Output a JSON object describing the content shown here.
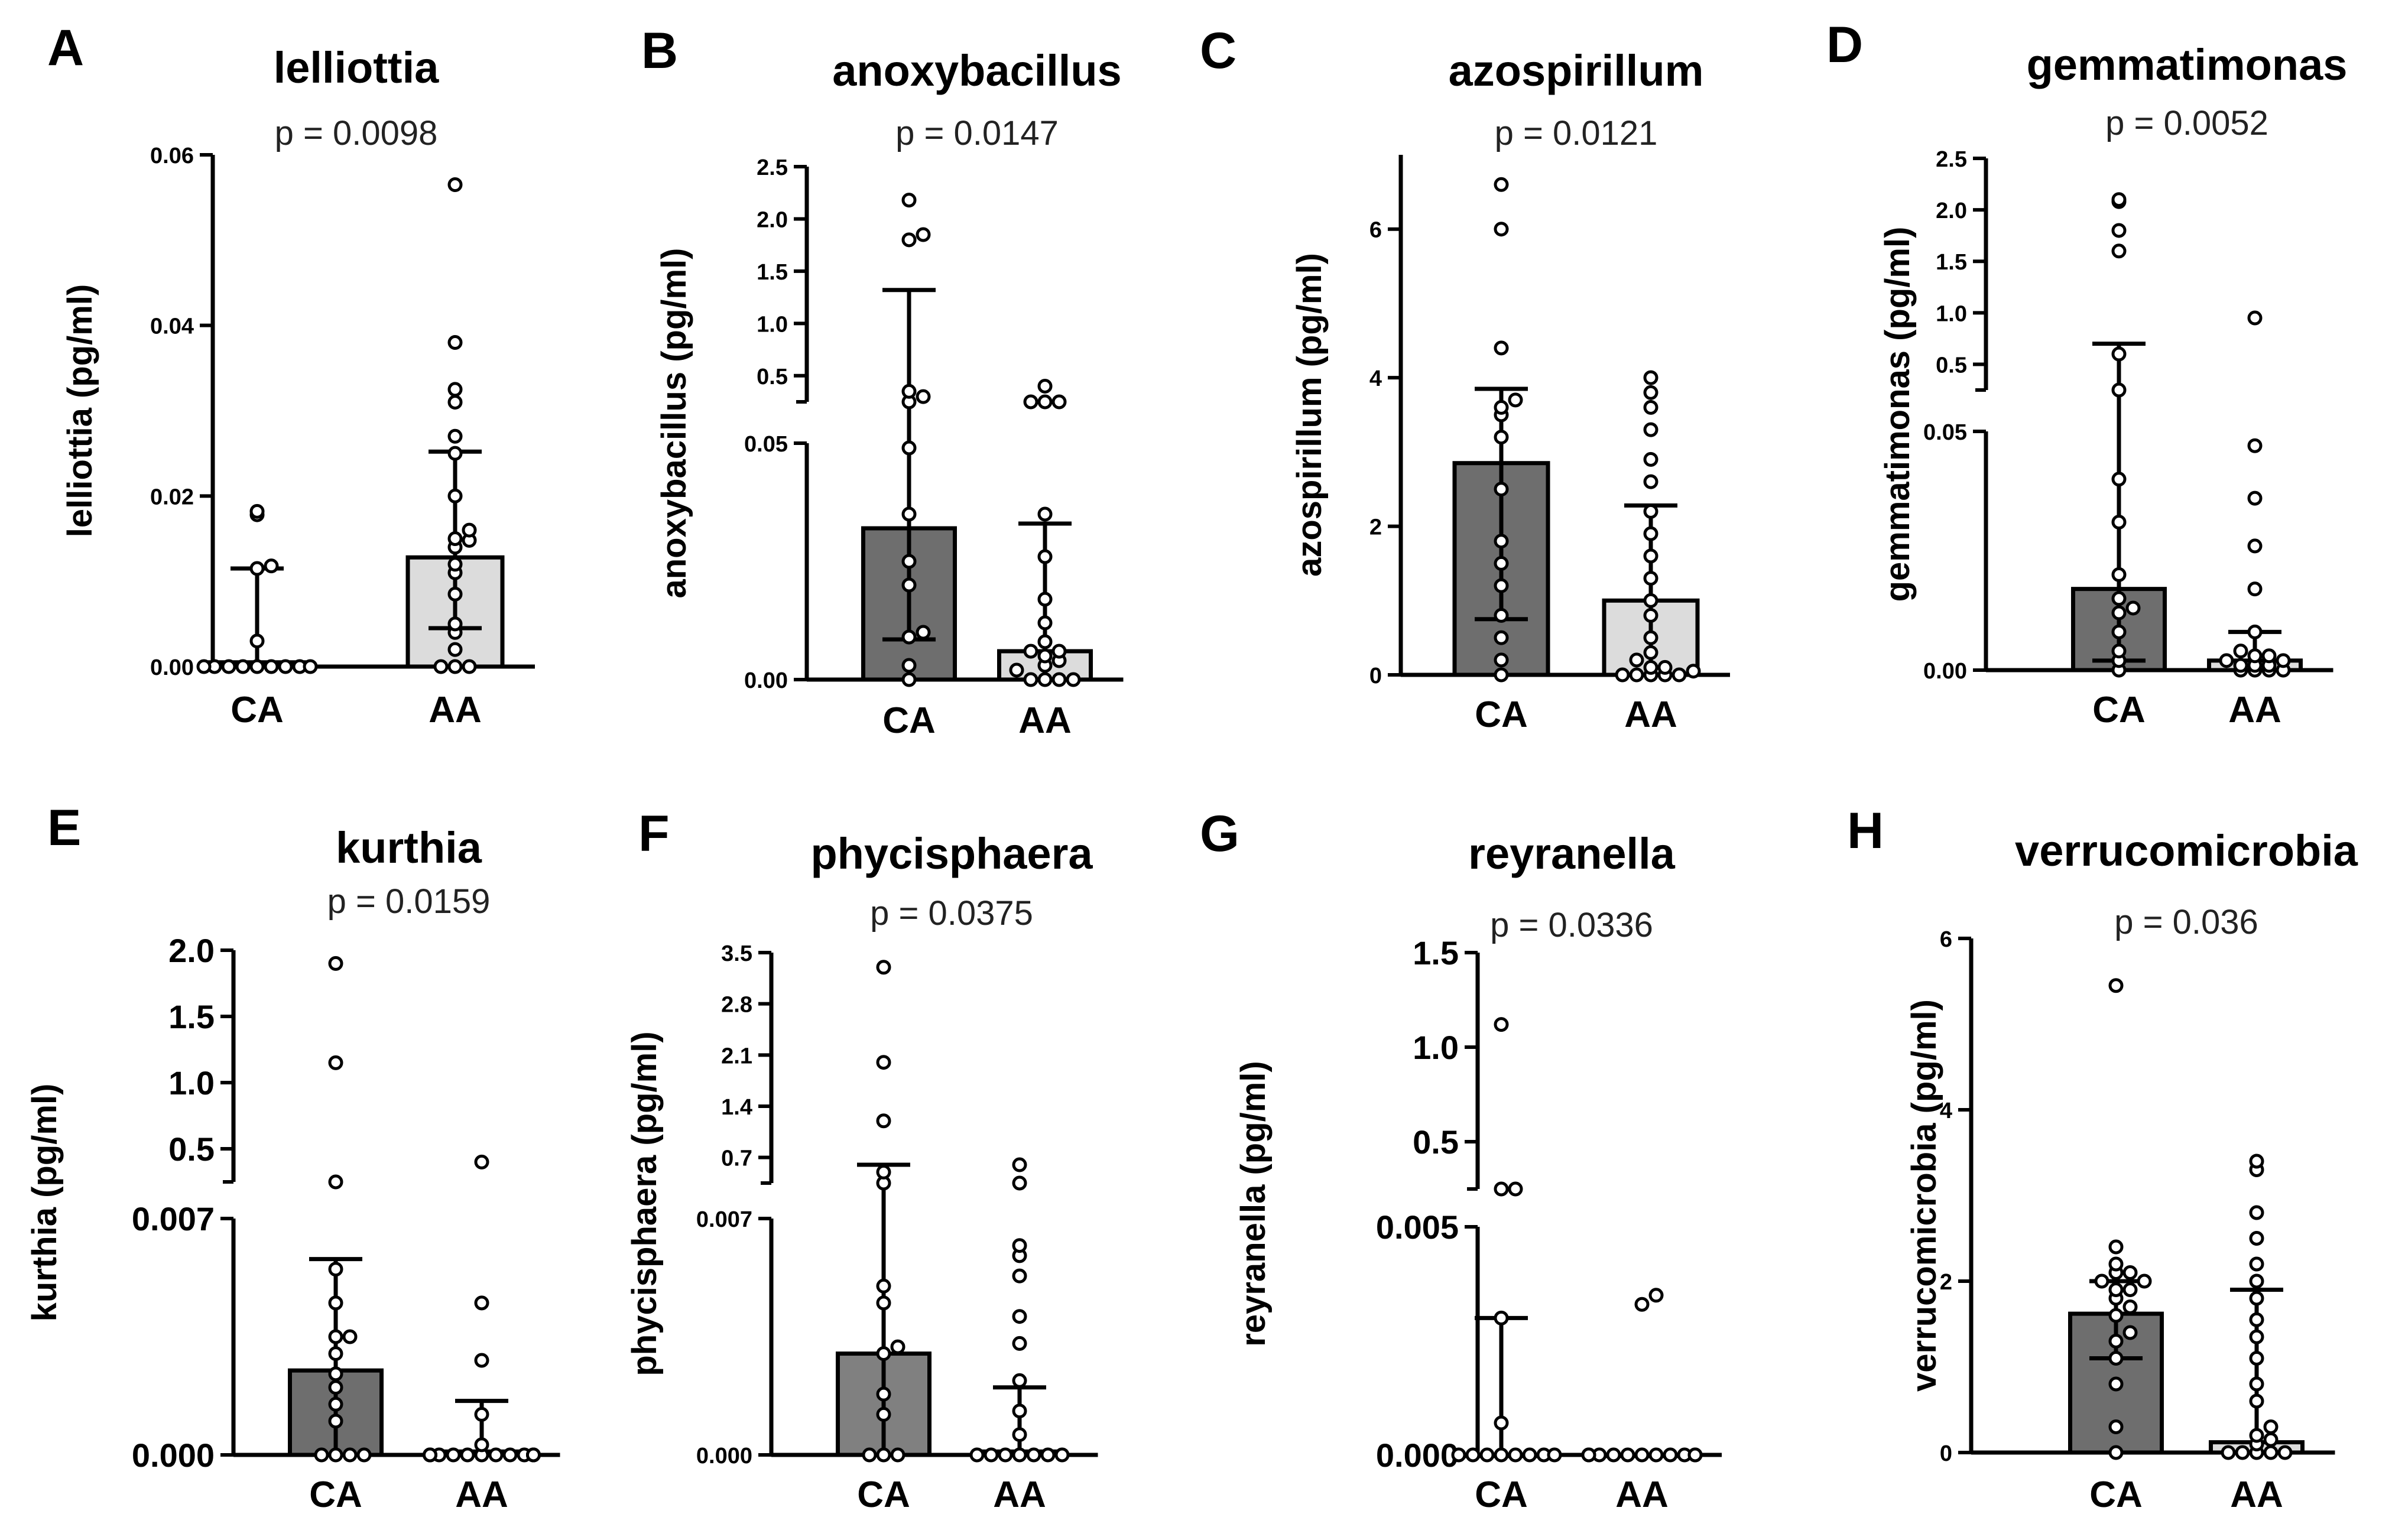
{
  "panels": [
    {
      "label": "A",
      "title": "lelliottia",
      "p": "p = 0.0098",
      "ylabel": "lelliottia (pg/ml)",
      "categories": [
        "CA",
        "AA"
      ],
      "bar_colors": [
        "#808080",
        "#dcdcdc"
      ],
      "scale": {
        "type": "linear",
        "lower": [
          0,
          0.06
        ],
        "lower_ticks": [
          "0.00",
          "0.02",
          "0.04",
          "0.06"
        ],
        "lower_tick_values": [
          0,
          0.02,
          0.04,
          0.06
        ]
      },
      "ca": {
        "median": 0.0005,
        "err_low": 0,
        "err_high": 0.0115,
        "points": [
          0,
          0,
          0,
          0,
          0,
          0,
          0,
          0,
          0,
          0.003,
          0.0115,
          0.0118,
          0.0178,
          0.0182
        ]
      },
      "aa": {
        "median": 0.0128,
        "err_low": 0.0045,
        "err_high": 0.0252,
        "points": [
          0,
          0,
          0,
          0.002,
          0.004,
          0.005,
          0.0085,
          0.011,
          0.012,
          0.014,
          0.0148,
          0.015,
          0.016,
          0.02,
          0.025,
          0.027,
          0.031,
          0.0325,
          0.038,
          0.0565
        ]
      }
    },
    {
      "label": "B",
      "title": "anoxybacillus",
      "p": "p = 0.0147",
      "ylabel": "anoxybacillus (pg/ml)",
      "categories": [
        "CA",
        "AA"
      ],
      "bar_colors": [
        "#6e6e6e",
        "#dcdcdc"
      ],
      "scale": {
        "type": "broken",
        "lower": [
          0,
          0.05
        ],
        "lower_ticks": [
          "0.00",
          "0.05"
        ],
        "lower_tick_values": [
          0,
          0.05
        ],
        "upper": [
          0,
          2.5
        ],
        "upper_ticks": [
          "0.5",
          "1.0",
          "1.5",
          "2.0",
          "2.5"
        ],
        "upper_tick_values": [
          0.5,
          1.0,
          1.5,
          2.0,
          2.5
        ]
      },
      "ca": {
        "median": 0.032,
        "err_low": 0.0085,
        "err_high": 1.32,
        "points": [
          0,
          0.003,
          0.009,
          0.01,
          0.02,
          0.025,
          0.035,
          0.049,
          0.2,
          0.35,
          0.3,
          1.85,
          1.8,
          2.18
        ]
      },
      "aa": {
        "median": 0.006,
        "err_low": 0,
        "err_high": 0.033,
        "points": [
          0,
          0,
          0,
          0,
          0.002,
          0.003,
          0.004,
          0.005,
          0.006,
          0.006,
          0.008,
          0.012,
          0.017,
          0.026,
          0.035,
          0.2,
          0.2,
          0.22,
          0.4
        ]
      }
    },
    {
      "label": "C",
      "title": "azospirillum",
      "p": "p = 0.0121",
      "ylabel": "azospirillum (pg/ml)",
      "categories": [
        "CA",
        "AA"
      ],
      "bar_colors": [
        "#6e6e6e",
        "#dcdcdc"
      ],
      "scale": {
        "type": "linear",
        "lower": [
          0,
          7
        ],
        "lower_ticks": [
          "0",
          "2",
          "4",
          "6"
        ],
        "lower_tick_values": [
          0,
          2,
          4,
          6
        ]
      },
      "ca": {
        "median": 2.85,
        "err_low": 0.75,
        "err_high": 3.85,
        "points": [
          0,
          0.2,
          0.5,
          0.8,
          1.2,
          1.5,
          1.8,
          2.5,
          3.2,
          3.5,
          3.6,
          3.7,
          4.4,
          6.0,
          6.6
        ]
      },
      "aa": {
        "median": 1.0,
        "err_low": 0,
        "err_high": 2.28,
        "points": [
          0,
          0,
          0,
          0,
          0,
          0.05,
          0.1,
          0.1,
          0.2,
          0.3,
          0.5,
          0.8,
          1.0,
          1.3,
          1.6,
          1.9,
          2.2,
          2.6,
          2.9,
          3.3,
          3.6,
          3.8,
          4.0
        ]
      }
    },
    {
      "label": "D",
      "title": "gemmatimonas",
      "p": "p = 0.0052",
      "ylabel": "gemmatimonas (pg/ml)",
      "categories": [
        "CA",
        "AA"
      ],
      "bar_colors": [
        "#6e6e6e",
        "#dcdcdc"
      ],
      "scale": {
        "type": "broken",
        "lower": [
          0,
          0.05
        ],
        "lower_ticks": [
          "0.00",
          "0.05"
        ],
        "lower_tick_values": [
          0,
          0.05
        ],
        "upper": [
          0,
          2.5
        ],
        "upper_ticks": [
          "0.5",
          "1.0",
          "1.5",
          "2.0",
          "2.5"
        ],
        "upper_tick_values": [
          0.5,
          1.0,
          1.5,
          2.0,
          2.5
        ]
      },
      "ca": {
        "median": 0.017,
        "err_low": 0.002,
        "err_high": 0.7,
        "points": [
          0,
          0.002,
          0.004,
          0.008,
          0.012,
          0.013,
          0.015,
          0.02,
          0.031,
          0.04,
          0.1,
          0.6,
          1.6,
          1.8,
          2.1,
          2.08
        ]
      },
      "aa": {
        "median": 0.002,
        "err_low": 0,
        "err_high": 0.008,
        "points": [
          0,
          0,
          0,
          0,
          0.001,
          0.001,
          0.001,
          0.002,
          0.002,
          0.003,
          0.003,
          0.004,
          0.008,
          0.017,
          0.026,
          0.036,
          0.047,
          0.95
        ]
      }
    },
    {
      "label": "E",
      "title": "kurthia",
      "p": "p = 0.0159",
      "ylabel": "kurthia (pg/ml)",
      "categories": [
        "CA",
        "AA"
      ],
      "bar_colors": [
        "#6e6e6e",
        "#dcdcdc"
      ],
      "scale": {
        "type": "broken",
        "lower": [
          0,
          0.007
        ],
        "lower_ticks": [
          "0.000",
          "0.007"
        ],
        "lower_tick_values": [
          0,
          0.007
        ],
        "upper": [
          0,
          2.0
        ],
        "upper_ticks": [
          "0.5",
          "1.0",
          "1.5",
          "2.0"
        ],
        "upper_tick_values": [
          0.5,
          1.0,
          1.5,
          2.0
        ]
      },
      "ca": {
        "median": 0.0025,
        "err_low": 0,
        "err_high": 0.0058,
        "points": [
          0,
          0,
          0,
          0,
          0.001,
          0.0015,
          0.002,
          0.0024,
          0.003,
          0.0035,
          0.0035,
          0.0045,
          0.0055,
          0.2,
          1.15,
          1.9
        ]
      },
      "aa": {
        "median": 0.0001,
        "err_low": 0,
        "err_high": 0.0016,
        "points": [
          0,
          0,
          0,
          0,
          0,
          0,
          0,
          0,
          0,
          0,
          0,
          0,
          0.0003,
          0.0012,
          0.0028,
          0.0045,
          0.0,
          0.4
        ]
      }
    },
    {
      "label": "F",
      "title": "phycisphaera",
      "p": "p = 0.0375",
      "ylabel": "phycisphaera (pg/ml)",
      "categories": [
        "CA",
        "AA"
      ],
      "bar_colors": [
        "#808080",
        "#dcdcdc"
      ],
      "scale": {
        "type": "broken",
        "lower": [
          0,
          0.007
        ],
        "lower_ticks": [
          "0.000",
          "0.007"
        ],
        "lower_tick_values": [
          0,
          0.007
        ],
        "upper": [
          0,
          3.5
        ],
        "upper_ticks": [
          "0.7",
          "1.4",
          "2.1",
          "2.8",
          "3.5"
        ],
        "upper_tick_values": [
          0.7,
          1.4,
          2.1,
          2.8,
          3.5
        ]
      },
      "ca": {
        "median": 0.003,
        "err_low": 0,
        "err_high": 0.6,
        "points": [
          0,
          0,
          0,
          0.0012,
          0.0018,
          0.003,
          0.0032,
          0.0045,
          0.005,
          0.2,
          0.5,
          1.2,
          2.0,
          3.3
        ]
      },
      "aa": {
        "median": 0.0001,
        "err_low": 0,
        "err_high": 0.002,
        "points": [
          0,
          0,
          0,
          0,
          0,
          0,
          0,
          0.0006,
          0.0013,
          0.0022,
          0.0033,
          0.0041,
          0.0053,
          0.0059,
          0.0062,
          0.1,
          0.6
        ]
      }
    },
    {
      "label": "G",
      "title": "reyranella",
      "p": "p = 0.0336",
      "ylabel": "reyranella (pg/ml)",
      "categories": [
        "CA",
        "AA"
      ],
      "bar_colors": [
        "#6e6e6e",
        "#dcdcdc"
      ],
      "scale": {
        "type": "broken",
        "lower": [
          0,
          0.005
        ],
        "lower_ticks": [
          "0.000",
          "0.005"
        ],
        "lower_tick_values": [
          0,
          0.005
        ],
        "upper": [
          0,
          1.5
        ],
        "upper_ticks": [
          "0.5",
          "1.0",
          "1.5"
        ],
        "upper_tick_values": [
          0.5,
          1.0,
          1.5
        ]
      },
      "ca": {
        "median": 0.0,
        "err_low": 0,
        "err_high": 0.003,
        "points": [
          0,
          0,
          0,
          0,
          0,
          0,
          0,
          0,
          0.0007,
          0.003,
          0.01,
          0.01,
          1.12
        ]
      },
      "aa": {
        "median": 0.0,
        "err_low": 0,
        "err_high": 0,
        "points": [
          0,
          0,
          0,
          0,
          0,
          0,
          0,
          0,
          0,
          0,
          0,
          0.0033,
          0.0035
        ]
      }
    },
    {
      "label": "H",
      "title": "verrucomicrobia",
      "p": "p = 0.036",
      "ylabel": "verrucomicrobia (pg/ml)",
      "categories": [
        "CA",
        "AA"
      ],
      "bar_colors": [
        "#6e6e6e",
        "#dcdcdc"
      ],
      "scale": {
        "type": "linear",
        "lower": [
          0,
          6
        ],
        "lower_ticks": [
          "0",
          "2",
          "4",
          "6"
        ],
        "lower_tick_values": [
          0,
          2,
          4,
          6
        ]
      },
      "ca": {
        "median": 1.62,
        "err_low": 1.1,
        "err_high": 2.0,
        "points": [
          0,
          0.3,
          0.8,
          1.1,
          1.3,
          1.4,
          1.6,
          1.7,
          1.8,
          1.9,
          1.9,
          2.0,
          2.0,
          2.1,
          2.1,
          2.2,
          2.4,
          5.45
        ]
      },
      "aa": {
        "median": 0.12,
        "err_low": 0,
        "err_high": 1.9,
        "points": [
          0,
          0,
          0,
          0,
          0,
          0.1,
          0.15,
          0.2,
          0.3,
          0.6,
          0.8,
          1.1,
          1.35,
          1.55,
          1.8,
          2.0,
          2.2,
          2.5,
          2.8,
          3.3,
          3.4
        ]
      }
    }
  ],
  "chart_data": [
    {
      "type": "bar",
      "panel": "A",
      "title": "lelliottia",
      "annotation": "p = 0.0098",
      "xlabel": "",
      "ylabel": "lelliottia (pg/ml)",
      "categories": [
        "CA",
        "AA"
      ],
      "values": [
        0.0005,
        0.0128
      ],
      "error_low": [
        0,
        0.0045
      ],
      "error_high": [
        0.0115,
        0.0252
      ],
      "ylim": [
        0,
        0.06
      ]
    },
    {
      "type": "bar",
      "panel": "B",
      "title": "anoxybacillus",
      "annotation": "p = 0.0147",
      "xlabel": "",
      "ylabel": "anoxybacillus (pg/ml)",
      "categories": [
        "CA",
        "AA"
      ],
      "values": [
        0.032,
        0.006
      ],
      "error_low": [
        0.0085,
        0
      ],
      "error_high": [
        1.32,
        0.033
      ],
      "ylim": [
        0,
        2.5
      ],
      "axis_break": [
        0.05,
        0.3
      ]
    },
    {
      "type": "bar",
      "panel": "C",
      "title": "azospirillum",
      "annotation": "p = 0.0121",
      "xlabel": "",
      "ylabel": "azospirillum (pg/ml)",
      "categories": [
        "CA",
        "AA"
      ],
      "values": [
        2.85,
        1.0
      ],
      "error_low": [
        0.75,
        0
      ],
      "error_high": [
        3.85,
        2.28
      ],
      "ylim": [
        0,
        7
      ]
    },
    {
      "type": "bar",
      "panel": "D",
      "title": "gemmatimonas",
      "annotation": "p = 0.0052",
      "xlabel": "",
      "ylabel": "gemmatimonas (pg/ml)",
      "categories": [
        "CA",
        "AA"
      ],
      "values": [
        0.017,
        0.002
      ],
      "error_low": [
        0.002,
        0
      ],
      "error_high": [
        0.7,
        0.008
      ],
      "ylim": [
        0,
        2.5
      ],
      "axis_break": [
        0.05,
        0.3
      ]
    },
    {
      "type": "bar",
      "panel": "E",
      "title": "kurthia",
      "annotation": "p = 0.0159",
      "xlabel": "",
      "ylabel": "kurthia (pg/ml)",
      "categories": [
        "CA",
        "AA"
      ],
      "values": [
        0.0025,
        0.0001
      ],
      "error_low": [
        0,
        0
      ],
      "error_high": [
        0.0058,
        0.0016
      ],
      "ylim": [
        0,
        2.0
      ],
      "axis_break": [
        0.007,
        0.1
      ]
    },
    {
      "type": "bar",
      "panel": "F",
      "title": "phycisphaera",
      "annotation": "p = 0.0375",
      "xlabel": "",
      "ylabel": "phycisphaera (pg/ml)",
      "categories": [
        "CA",
        "AA"
      ],
      "values": [
        0.003,
        0.0001
      ],
      "error_low": [
        0,
        0
      ],
      "error_high": [
        0.6,
        0.002
      ],
      "ylim": [
        0,
        3.5
      ],
      "axis_break": [
        0.007,
        0.1
      ]
    },
    {
      "type": "bar",
      "panel": "G",
      "title": "reyranella",
      "annotation": "p = 0.0336",
      "xlabel": "",
      "ylabel": "reyranella (pg/ml)",
      "categories": [
        "CA",
        "AA"
      ],
      "values": [
        0.0,
        0.0
      ],
      "error_low": [
        0,
        0
      ],
      "error_high": [
        0.003,
        0
      ],
      "ylim": [
        0,
        1.5
      ],
      "axis_break": [
        0.005,
        0.1
      ]
    },
    {
      "type": "bar",
      "panel": "H",
      "title": "verrucomicrobia",
      "annotation": "p = 0.036",
      "xlabel": "",
      "ylabel": "verrucomicrobia (pg/ml)",
      "categories": [
        "CA",
        "AA"
      ],
      "values": [
        1.62,
        0.12
      ],
      "error_low": [
        1.1,
        0
      ],
      "error_high": [
        2.0,
        1.9
      ],
      "ylim": [
        0,
        6
      ]
    }
  ]
}
